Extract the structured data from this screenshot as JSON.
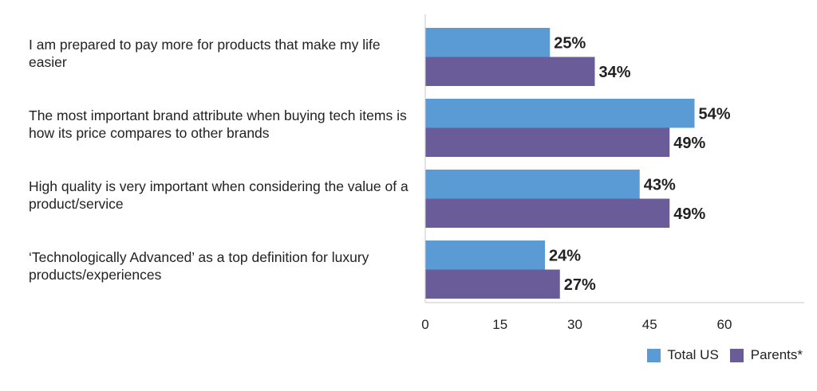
{
  "chart_data": {
    "type": "bar",
    "orientation": "horizontal",
    "categories": [
      "I am prepared to pay more for products that make my life easier",
      "The most important brand attribute when buying tech items is how its price compares to other brands",
      "High quality is very important when considering the value of a product/service",
      "‘Technologically Advanced’ as a top definition for luxury products/experiences"
    ],
    "series": [
      {
        "name": "Total US",
        "color": "#5b9bd5",
        "values": [
          25,
          54,
          43,
          24
        ]
      },
      {
        "name": "Parents*",
        "color": "#6a5c99",
        "values": [
          34,
          49,
          49,
          27
        ]
      }
    ],
    "value_suffix": "%",
    "xlim": [
      0,
      76
    ],
    "xticks": [
      0,
      15,
      30,
      45,
      60
    ],
    "grid": false,
    "legend_position": "bottom-right"
  }
}
